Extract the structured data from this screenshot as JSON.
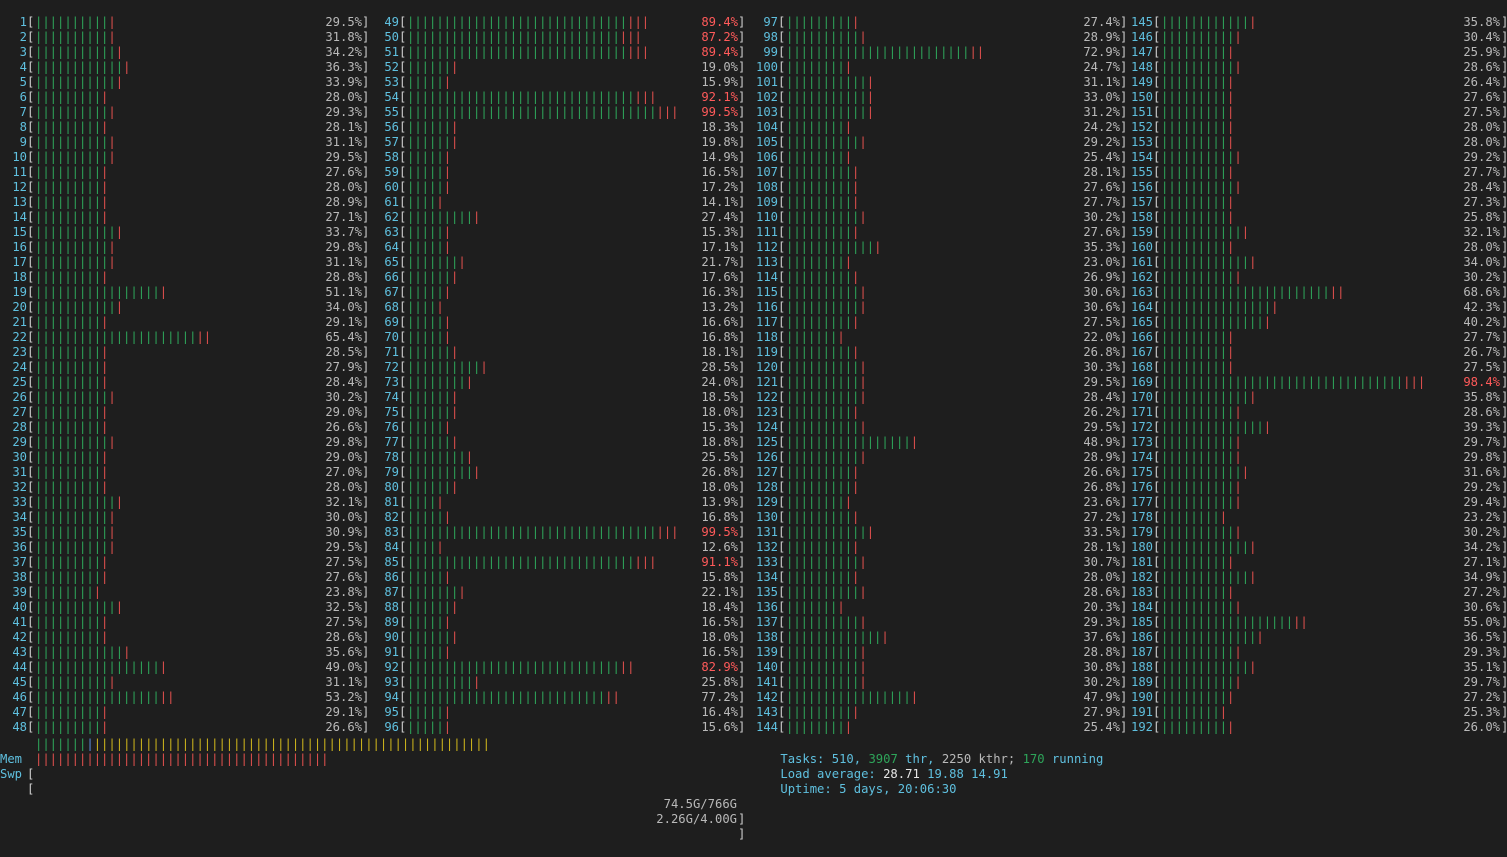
{
  "colors": {
    "background": "#1e1e1e",
    "label": "#5fc0df",
    "bar_normal": "#2ea55a",
    "bar_kernel": "#e0504e",
    "bar_buffers": "#5a8fe0",
    "bar_cache": "#cdb51c",
    "text": "#b9b9b9",
    "high_usage": "#ff5a5a"
  },
  "cpus": [
    {
      "id": "1",
      "pct": "29.5%"
    },
    {
      "id": "2",
      "pct": "31.8%"
    },
    {
      "id": "3",
      "pct": "34.2%"
    },
    {
      "id": "4",
      "pct": "36.3%"
    },
    {
      "id": "5",
      "pct": "33.9%"
    },
    {
      "id": "6",
      "pct": "28.0%"
    },
    {
      "id": "7",
      "pct": "29.3%"
    },
    {
      "id": "8",
      "pct": "28.1%"
    },
    {
      "id": "9",
      "pct": "31.1%"
    },
    {
      "id": "10",
      "pct": "29.5%"
    },
    {
      "id": "11",
      "pct": "27.6%"
    },
    {
      "id": "12",
      "pct": "28.0%"
    },
    {
      "id": "13",
      "pct": "28.9%"
    },
    {
      "id": "14",
      "pct": "27.1%"
    },
    {
      "id": "15",
      "pct": "33.7%"
    },
    {
      "id": "16",
      "pct": "29.8%"
    },
    {
      "id": "17",
      "pct": "31.1%"
    },
    {
      "id": "18",
      "pct": "28.8%"
    },
    {
      "id": "19",
      "pct": "51.1%"
    },
    {
      "id": "20",
      "pct": "34.0%"
    },
    {
      "id": "21",
      "pct": "29.1%"
    },
    {
      "id": "22",
      "pct": "65.4%"
    },
    {
      "id": "23",
      "pct": "28.5%"
    },
    {
      "id": "24",
      "pct": "27.9%"
    },
    {
      "id": "25",
      "pct": "28.4%"
    },
    {
      "id": "26",
      "pct": "30.2%"
    },
    {
      "id": "27",
      "pct": "29.0%"
    },
    {
      "id": "28",
      "pct": "26.6%"
    },
    {
      "id": "29",
      "pct": "29.8%"
    },
    {
      "id": "30",
      "pct": "29.0%"
    },
    {
      "id": "31",
      "pct": "27.0%"
    },
    {
      "id": "32",
      "pct": "28.0%"
    },
    {
      "id": "33",
      "pct": "32.1%"
    },
    {
      "id": "34",
      "pct": "30.0%"
    },
    {
      "id": "35",
      "pct": "30.9%"
    },
    {
      "id": "36",
      "pct": "29.5%"
    },
    {
      "id": "37",
      "pct": "27.5%"
    },
    {
      "id": "38",
      "pct": "27.6%"
    },
    {
      "id": "39",
      "pct": "23.8%"
    },
    {
      "id": "40",
      "pct": "32.5%"
    },
    {
      "id": "41",
      "pct": "27.5%"
    },
    {
      "id": "42",
      "pct": "28.6%"
    },
    {
      "id": "43",
      "pct": "35.6%"
    },
    {
      "id": "44",
      "pct": "49.0%"
    },
    {
      "id": "45",
      "pct": "31.1%"
    },
    {
      "id": "46",
      "pct": "53.2%"
    },
    {
      "id": "47",
      "pct": "29.1%"
    },
    {
      "id": "48",
      "pct": "26.6%"
    },
    {
      "id": "49",
      "pct": "89.4%"
    },
    {
      "id": "50",
      "pct": "87.2%"
    },
    {
      "id": "51",
      "pct": "89.4%"
    },
    {
      "id": "52",
      "pct": "19.0%"
    },
    {
      "id": "53",
      "pct": "15.9%"
    },
    {
      "id": "54",
      "pct": "92.1%"
    },
    {
      "id": "55",
      "pct": "99.5%"
    },
    {
      "id": "56",
      "pct": "18.3%"
    },
    {
      "id": "57",
      "pct": "19.8%"
    },
    {
      "id": "58",
      "pct": "14.9%"
    },
    {
      "id": "59",
      "pct": "16.5%"
    },
    {
      "id": "60",
      "pct": "17.2%"
    },
    {
      "id": "61",
      "pct": "14.1%"
    },
    {
      "id": "62",
      "pct": "27.4%"
    },
    {
      "id": "63",
      "pct": "15.3%"
    },
    {
      "id": "64",
      "pct": "17.1%"
    },
    {
      "id": "65",
      "pct": "21.7%"
    },
    {
      "id": "66",
      "pct": "17.6%"
    },
    {
      "id": "67",
      "pct": "16.3%"
    },
    {
      "id": "68",
      "pct": "13.2%"
    },
    {
      "id": "69",
      "pct": "16.6%"
    },
    {
      "id": "70",
      "pct": "16.8%"
    },
    {
      "id": "71",
      "pct": "18.1%"
    },
    {
      "id": "72",
      "pct": "28.5%"
    },
    {
      "id": "73",
      "pct": "24.0%"
    },
    {
      "id": "74",
      "pct": "18.5%"
    },
    {
      "id": "75",
      "pct": "18.0%"
    },
    {
      "id": "76",
      "pct": "15.3%"
    },
    {
      "id": "77",
      "pct": "18.8%"
    },
    {
      "id": "78",
      "pct": "25.5%"
    },
    {
      "id": "79",
      "pct": "26.8%"
    },
    {
      "id": "80",
      "pct": "18.0%"
    },
    {
      "id": "81",
      "pct": "13.9%"
    },
    {
      "id": "82",
      "pct": "16.8%"
    },
    {
      "id": "83",
      "pct": "99.5%"
    },
    {
      "id": "84",
      "pct": "12.6%"
    },
    {
      "id": "85",
      "pct": "91.1%"
    },
    {
      "id": "86",
      "pct": "15.8%"
    },
    {
      "id": "87",
      "pct": "22.1%"
    },
    {
      "id": "88",
      "pct": "18.4%"
    },
    {
      "id": "89",
      "pct": "16.5%"
    },
    {
      "id": "90",
      "pct": "18.0%"
    },
    {
      "id": "91",
      "pct": "16.5%"
    },
    {
      "id": "92",
      "pct": "82.9%"
    },
    {
      "id": "93",
      "pct": "25.8%"
    },
    {
      "id": "94",
      "pct": "77.2%"
    },
    {
      "id": "95",
      "pct": "16.4%"
    },
    {
      "id": "96",
      "pct": "15.6%"
    },
    {
      "id": "97",
      "pct": "27.4%"
    },
    {
      "id": "98",
      "pct": "28.9%"
    },
    {
      "id": "99",
      "pct": "72.9%"
    },
    {
      "id": "100",
      "pct": "24.7%"
    },
    {
      "id": "101",
      "pct": "31.1%"
    },
    {
      "id": "102",
      "pct": "33.0%"
    },
    {
      "id": "103",
      "pct": "31.2%"
    },
    {
      "id": "104",
      "pct": "24.2%"
    },
    {
      "id": "105",
      "pct": "29.2%"
    },
    {
      "id": "106",
      "pct": "25.4%"
    },
    {
      "id": "107",
      "pct": "28.1%"
    },
    {
      "id": "108",
      "pct": "27.6%"
    },
    {
      "id": "109",
      "pct": "27.7%"
    },
    {
      "id": "110",
      "pct": "30.2%"
    },
    {
      "id": "111",
      "pct": "27.6%"
    },
    {
      "id": "112",
      "pct": "35.3%"
    },
    {
      "id": "113",
      "pct": "23.0%"
    },
    {
      "id": "114",
      "pct": "26.9%"
    },
    {
      "id": "115",
      "pct": "30.6%"
    },
    {
      "id": "116",
      "pct": "30.6%"
    },
    {
      "id": "117",
      "pct": "27.5%"
    },
    {
      "id": "118",
      "pct": "22.0%"
    },
    {
      "id": "119",
      "pct": "26.8%"
    },
    {
      "id": "120",
      "pct": "30.3%"
    },
    {
      "id": "121",
      "pct": "29.5%"
    },
    {
      "id": "122",
      "pct": "28.4%"
    },
    {
      "id": "123",
      "pct": "26.2%"
    },
    {
      "id": "124",
      "pct": "29.5%"
    },
    {
      "id": "125",
      "pct": "48.9%"
    },
    {
      "id": "126",
      "pct": "28.9%"
    },
    {
      "id": "127",
      "pct": "26.6%"
    },
    {
      "id": "128",
      "pct": "26.8%"
    },
    {
      "id": "129",
      "pct": "23.6%"
    },
    {
      "id": "130",
      "pct": "27.2%"
    },
    {
      "id": "131",
      "pct": "33.5%"
    },
    {
      "id": "132",
      "pct": "28.1%"
    },
    {
      "id": "133",
      "pct": "30.7%"
    },
    {
      "id": "134",
      "pct": "28.0%"
    },
    {
      "id": "135",
      "pct": "28.6%"
    },
    {
      "id": "136",
      "pct": "20.3%"
    },
    {
      "id": "137",
      "pct": "29.3%"
    },
    {
      "id": "138",
      "pct": "37.6%"
    },
    {
      "id": "139",
      "pct": "28.8%"
    },
    {
      "id": "140",
      "pct": "30.8%"
    },
    {
      "id": "141",
      "pct": "30.2%"
    },
    {
      "id": "142",
      "pct": "47.9%"
    },
    {
      "id": "143",
      "pct": "27.9%"
    },
    {
      "id": "144",
      "pct": "25.4%"
    },
    {
      "id": "145",
      "pct": "35.8%"
    },
    {
      "id": "146",
      "pct": "30.4%"
    },
    {
      "id": "147",
      "pct": "25.9%"
    },
    {
      "id": "148",
      "pct": "28.6%"
    },
    {
      "id": "149",
      "pct": "26.4%"
    },
    {
      "id": "150",
      "pct": "27.6%"
    },
    {
      "id": "151",
      "pct": "27.5%"
    },
    {
      "id": "152",
      "pct": "28.0%"
    },
    {
      "id": "153",
      "pct": "28.0%"
    },
    {
      "id": "154",
      "pct": "29.2%"
    },
    {
      "id": "155",
      "pct": "27.7%"
    },
    {
      "id": "156",
      "pct": "28.4%"
    },
    {
      "id": "157",
      "pct": "27.3%"
    },
    {
      "id": "158",
      "pct": "25.8%"
    },
    {
      "id": "159",
      "pct": "32.1%"
    },
    {
      "id": "160",
      "pct": "28.0%"
    },
    {
      "id": "161",
      "pct": "34.0%"
    },
    {
      "id": "162",
      "pct": "30.2%"
    },
    {
      "id": "163",
      "pct": "68.6%"
    },
    {
      "id": "164",
      "pct": "42.3%"
    },
    {
      "id": "165",
      "pct": "40.2%"
    },
    {
      "id": "166",
      "pct": "27.7%"
    },
    {
      "id": "167",
      "pct": "26.7%"
    },
    {
      "id": "168",
      "pct": "27.5%"
    },
    {
      "id": "169",
      "pct": "98.4%"
    },
    {
      "id": "170",
      "pct": "35.8%"
    },
    {
      "id": "171",
      "pct": "28.6%"
    },
    {
      "id": "172",
      "pct": "39.3%"
    },
    {
      "id": "173",
      "pct": "29.7%"
    },
    {
      "id": "174",
      "pct": "29.8%"
    },
    {
      "id": "175",
      "pct": "31.6%"
    },
    {
      "id": "176",
      "pct": "29.2%"
    },
    {
      "id": "177",
      "pct": "29.4%"
    },
    {
      "id": "178",
      "pct": "23.2%"
    },
    {
      "id": "179",
      "pct": "30.2%"
    },
    {
      "id": "180",
      "pct": "34.2%"
    },
    {
      "id": "181",
      "pct": "27.1%"
    },
    {
      "id": "182",
      "pct": "34.9%"
    },
    {
      "id": "183",
      "pct": "27.2%"
    },
    {
      "id": "184",
      "pct": "30.6%"
    },
    {
      "id": "185",
      "pct": "55.0%"
    },
    {
      "id": "186",
      "pct": "36.5%"
    },
    {
      "id": "187",
      "pct": "29.3%"
    },
    {
      "id": "188",
      "pct": "35.1%"
    },
    {
      "id": "189",
      "pct": "29.7%"
    },
    {
      "id": "190",
      "pct": "27.2%"
    },
    {
      "id": "191",
      "pct": "25.3%"
    },
    {
      "id": "192",
      "pct": "26.0%"
    }
  ],
  "memory": {
    "label": "Mem",
    "value": "74.5G/766G",
    "used_fraction": 0.097,
    "buffers_fraction": 0.003,
    "cache_fraction": 0.77
  },
  "swap": {
    "label": "Swp",
    "value": "2.26G/4.00G",
    "used_fraction": 0.565
  },
  "tasks": {
    "label": "Tasks:",
    "count": "510,",
    "threads": "3907",
    "threads_suffix": "thr,",
    "kthreads": "2250",
    "kthreads_suffix": "kthr;",
    "running": "170",
    "running_suffix": "running"
  },
  "load": {
    "label": "Load average:",
    "one": "28.71",
    "five": "19.88",
    "fifteen": "14.91"
  },
  "uptime": {
    "label": "Uptime:",
    "value": "5 days, 20:06:30"
  }
}
